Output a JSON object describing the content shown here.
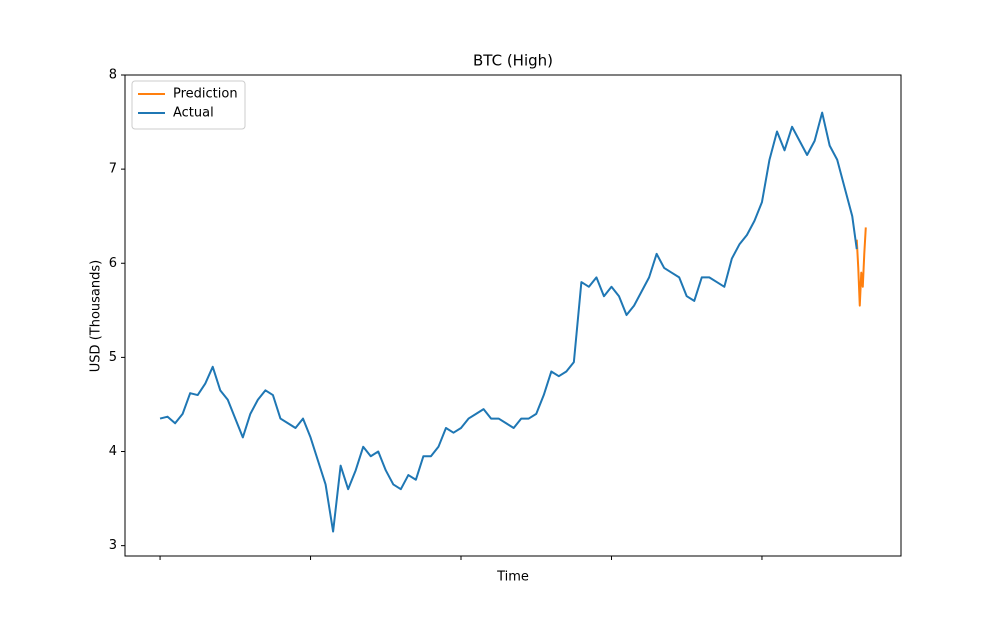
{
  "chart_data": {
    "type": "line",
    "title": "BTC (High)",
    "x_label": "Time",
    "y_label": "USD (Thousands)",
    "xlim": [
      -23.3,
      492.4
    ],
    "xticks": [
      0,
      100,
      200,
      300,
      400
    ],
    "xtick_labels": false,
    "ylim": [
      2.89,
      8.0
    ],
    "yticks": [
      3,
      4,
      5,
      6,
      7,
      8
    ],
    "grid": false,
    "legend": "upper left",
    "series": [
      {
        "name": "Prediction",
        "color": "#ff7f0e",
        "x": [
          463,
          464,
          465,
          466,
          467,
          468,
          469
        ],
        "values": [
          6.25,
          5.95,
          5.55,
          5.9,
          5.75,
          6.1,
          6.38
        ]
      },
      {
        "name": "Actual",
        "color": "#1f77b4",
        "x": [
          0,
          5,
          10,
          15,
          20,
          25,
          30,
          35,
          40,
          45,
          50,
          55,
          60,
          65,
          70,
          75,
          80,
          85,
          90,
          95,
          100,
          105,
          110,
          115,
          120,
          125,
          130,
          135,
          140,
          145,
          150,
          155,
          160,
          165,
          170,
          175,
          180,
          185,
          190,
          195,
          200,
          205,
          210,
          215,
          220,
          225,
          230,
          235,
          240,
          245,
          250,
          255,
          260,
          265,
          270,
          275,
          280,
          285,
          290,
          295,
          300,
          305,
          310,
          315,
          320,
          325,
          330,
          335,
          340,
          345,
          350,
          355,
          360,
          365,
          370,
          375,
          380,
          385,
          390,
          395,
          400,
          405,
          410,
          415,
          420,
          425,
          430,
          435,
          440,
          445,
          450,
          455,
          460,
          463
        ],
        "values": [
          4.35,
          4.37,
          4.3,
          4.4,
          4.62,
          4.6,
          4.72,
          4.9,
          4.65,
          4.55,
          4.35,
          4.15,
          4.4,
          4.55,
          4.65,
          4.6,
          4.35,
          4.3,
          4.25,
          4.35,
          4.15,
          3.9,
          3.65,
          3.15,
          3.85,
          3.6,
          3.8,
          4.05,
          3.95,
          4.0,
          3.8,
          3.65,
          3.6,
          3.75,
          3.7,
          3.95,
          3.95,
          4.05,
          4.25,
          4.2,
          4.25,
          4.35,
          4.4,
          4.45,
          4.35,
          4.35,
          4.3,
          4.25,
          4.35,
          4.35,
          4.4,
          4.6,
          4.85,
          4.8,
          4.85,
          4.95,
          5.8,
          5.75,
          5.85,
          5.65,
          5.75,
          5.65,
          5.45,
          5.55,
          5.7,
          5.85,
          6.1,
          5.95,
          5.9,
          5.85,
          5.65,
          5.6,
          5.85,
          5.85,
          5.8,
          5.75,
          6.05,
          6.2,
          6.3,
          6.45,
          6.65,
          7.1,
          7.4,
          7.2,
          7.45,
          7.3,
          7.15,
          7.3,
          7.6,
          7.25,
          7.1,
          6.8,
          6.5,
          6.15
        ]
      }
    ]
  }
}
